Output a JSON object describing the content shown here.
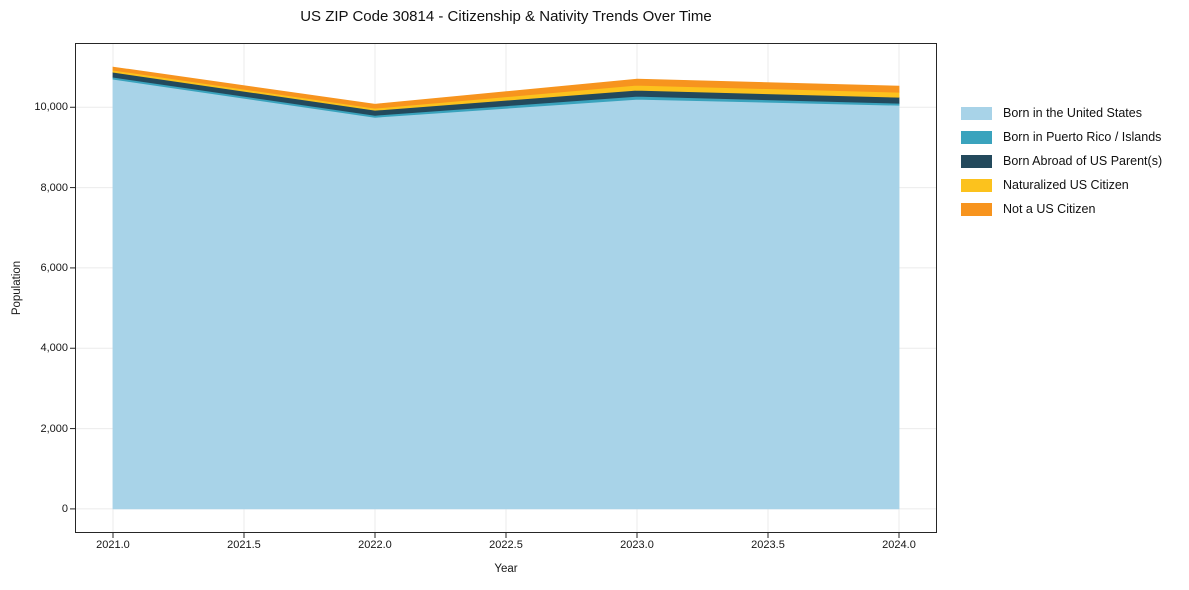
{
  "chart_data": {
    "type": "area",
    "stacked": true,
    "title": "US ZIP Code 30814 - Citizenship & Nativity Trends Over Time",
    "xlabel": "Year",
    "ylabel": "Population",
    "x": [
      2021,
      2022,
      2023,
      2024
    ],
    "series": [
      {
        "name": "Born in the United States",
        "color": "#a8d3e8",
        "values": [
          10700,
          9750,
          10200,
          10050
        ]
      },
      {
        "name": "Born in Puerto Rico / Islands",
        "color": "#3aa3bd",
        "values": [
          50,
          50,
          75,
          50
        ]
      },
      {
        "name": "Born Abroad of US Parent(s)",
        "color": "#23495c",
        "values": [
          125,
          125,
          150,
          150
        ]
      },
      {
        "name": "Naturalized US Citizen",
        "color": "#fcc21d",
        "values": [
          50,
          50,
          125,
          125
        ]
      },
      {
        "name": "Not a US Citizen",
        "color": "#f7941e",
        "values": [
          75,
          100,
          150,
          150
        ]
      }
    ],
    "totals": [
      11000,
      10075,
      10700,
      10525
    ],
    "x_ticks": [
      {
        "value": 2021.0,
        "label": "2021.0"
      },
      {
        "value": 2021.5,
        "label": "2021.5"
      },
      {
        "value": 2022.0,
        "label": "2022.0"
      },
      {
        "value": 2022.5,
        "label": "2022.5"
      },
      {
        "value": 2023.0,
        "label": "2023.0"
      },
      {
        "value": 2023.5,
        "label": "2023.5"
      },
      {
        "value": 2024.0,
        "label": "2024.0"
      }
    ],
    "y_ticks": [
      {
        "value": 0,
        "label": "0"
      },
      {
        "value": 2000,
        "label": "2,000"
      },
      {
        "value": 4000,
        "label": "4,000"
      },
      {
        "value": 6000,
        "label": "6,000"
      },
      {
        "value": 8000,
        "label": "8,000"
      },
      {
        "value": 10000,
        "label": "10,000"
      }
    ],
    "xlim": [
      2020.855,
      2024.145
    ],
    "ylim": [
      -600,
      11600
    ],
    "grid": true,
    "legend_position": "right",
    "colors": {
      "background": "#ffffff",
      "grid": "#ebebeb",
      "spine": "#262626",
      "text": "#111111"
    }
  }
}
